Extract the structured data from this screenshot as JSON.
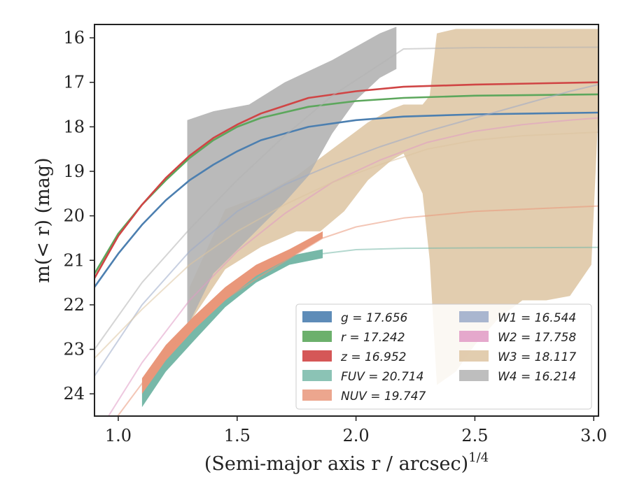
{
  "chart_data": {
    "type": "line",
    "title": "",
    "xlabel": "(Semi-major axis r / arcsec)",
    "xlabel_exponent": "1/4",
    "ylabel": "m(< r) (mag)",
    "xlim": [
      0.9,
      3.02
    ],
    "ylim": [
      24.5,
      15.7
    ],
    "y_inverted": true,
    "x_ticks": [
      1.0,
      1.5,
      2.0,
      2.5,
      3.0
    ],
    "x_tick_labels": [
      "1.0",
      "1.5",
      "2.0",
      "2.5",
      "3.0"
    ],
    "y_ticks": [
      16,
      17,
      18,
      19,
      20,
      21,
      22,
      23,
      24
    ],
    "y_tick_labels": [
      "16",
      "17",
      "18",
      "19",
      "20",
      "21",
      "22",
      "23",
      "24"
    ],
    "grid": false,
    "legend_position": "lower-right",
    "series": [
      {
        "name": "g",
        "legend": "g = 17.656",
        "color": "#4c7fb0",
        "line": [
          [
            0.9,
            21.6
          ],
          [
            1.0,
            20.85
          ],
          [
            1.1,
            20.2
          ],
          [
            1.2,
            19.65
          ],
          [
            1.3,
            19.2
          ],
          [
            1.4,
            18.85
          ],
          [
            1.5,
            18.55
          ],
          [
            1.6,
            18.3
          ],
          [
            1.8,
            18.0
          ],
          [
            2.0,
            17.85
          ],
          [
            2.2,
            17.77
          ],
          [
            2.5,
            17.72
          ],
          [
            3.02,
            17.68
          ]
        ],
        "band": []
      },
      {
        "name": "r",
        "legend": "r = 17.242",
        "color": "#5ca75c",
        "line": [
          [
            0.9,
            21.3
          ],
          [
            1.0,
            20.4
          ],
          [
            1.1,
            19.75
          ],
          [
            1.2,
            19.2
          ],
          [
            1.3,
            18.7
          ],
          [
            1.4,
            18.3
          ],
          [
            1.5,
            18.0
          ],
          [
            1.6,
            17.8
          ],
          [
            1.8,
            17.55
          ],
          [
            2.0,
            17.42
          ],
          [
            2.2,
            17.35
          ],
          [
            2.5,
            17.3
          ],
          [
            3.02,
            17.27
          ]
        ],
        "band": []
      },
      {
        "name": "z",
        "legend": "z = 16.952",
        "color": "#d04545",
        "line": [
          [
            0.9,
            21.4
          ],
          [
            1.0,
            20.45
          ],
          [
            1.1,
            19.75
          ],
          [
            1.2,
            19.15
          ],
          [
            1.3,
            18.65
          ],
          [
            1.4,
            18.25
          ],
          [
            1.5,
            17.95
          ],
          [
            1.6,
            17.7
          ],
          [
            1.8,
            17.35
          ],
          [
            2.0,
            17.2
          ],
          [
            2.2,
            17.1
          ],
          [
            2.5,
            17.05
          ],
          [
            3.02,
            17.0
          ]
        ],
        "band": []
      },
      {
        "name": "FUV",
        "legend": "FUV = 20.714",
        "color": "#77b8a8",
        "line": [
          [
            1.86,
            20.85
          ],
          [
            2.0,
            20.76
          ],
          [
            2.2,
            20.73
          ],
          [
            2.5,
            20.72
          ],
          [
            3.02,
            20.71
          ]
        ],
        "band": [
          [
            1.1,
            24.3,
            23.8
          ],
          [
            1.2,
            23.5,
            23.05
          ],
          [
            1.32,
            22.8,
            22.35
          ],
          [
            1.45,
            22.05,
            21.7
          ],
          [
            1.58,
            21.5,
            21.2
          ],
          [
            1.72,
            21.1,
            20.9
          ],
          [
            1.86,
            20.95,
            20.75
          ]
        ]
      },
      {
        "name": "NUV",
        "legend": "NUV = 19.747",
        "color": "#e9977a",
        "line": [
          [
            0.9,
            25.2
          ],
          [
            1.2,
            23.05
          ],
          [
            1.4,
            22.05
          ],
          [
            1.6,
            21.35
          ],
          [
            1.86,
            20.5
          ],
          [
            2.0,
            20.25
          ],
          [
            2.2,
            20.05
          ],
          [
            2.5,
            19.9
          ],
          [
            3.02,
            19.78
          ]
        ],
        "band": [
          [
            1.1,
            24.0,
            23.65
          ],
          [
            1.2,
            23.25,
            22.9
          ],
          [
            1.32,
            22.55,
            22.25
          ],
          [
            1.45,
            21.9,
            21.6
          ],
          [
            1.58,
            21.35,
            21.1
          ],
          [
            1.72,
            20.95,
            20.75
          ],
          [
            1.86,
            20.5,
            20.35
          ]
        ]
      },
      {
        "name": "W1",
        "legend": "W1 = 16.544",
        "color": "#9aaac8",
        "line": [
          [
            0.9,
            23.6
          ],
          [
            1.1,
            22.0
          ],
          [
            1.3,
            20.8
          ],
          [
            1.5,
            19.9
          ],
          [
            1.7,
            19.3
          ],
          [
            1.9,
            18.85
          ],
          [
            2.1,
            18.45
          ],
          [
            2.3,
            18.1
          ],
          [
            2.5,
            17.8
          ],
          [
            2.7,
            17.5
          ],
          [
            2.9,
            17.2
          ],
          [
            3.02,
            17.05
          ]
        ],
        "band": []
      },
      {
        "name": "W2",
        "legend": "W2 = 17.758",
        "color": "#e09ac4",
        "line": [
          [
            0.9,
            25.0
          ],
          [
            1.1,
            23.3
          ],
          [
            1.3,
            21.9
          ],
          [
            1.5,
            20.8
          ],
          [
            1.7,
            19.95
          ],
          [
            1.9,
            19.25
          ],
          [
            2.1,
            18.75
          ],
          [
            2.3,
            18.35
          ],
          [
            2.5,
            18.1
          ],
          [
            2.7,
            17.95
          ],
          [
            2.9,
            17.85
          ],
          [
            3.02,
            17.8
          ]
        ],
        "band": []
      },
      {
        "name": "W3",
        "legend": "W3 = 18.117",
        "color": "#ddc4a1",
        "line": [
          [
            0.9,
            23.2
          ],
          [
            1.1,
            22.1
          ],
          [
            1.3,
            21.1
          ],
          [
            1.5,
            20.35
          ],
          [
            1.7,
            19.75
          ],
          [
            1.9,
            19.25
          ],
          [
            2.1,
            18.85
          ],
          [
            2.3,
            18.5
          ],
          [
            2.5,
            18.3
          ],
          [
            2.7,
            18.2
          ],
          [
            3.02,
            18.12
          ]
        ],
        "band": [
          [
            1.3,
            22.4,
            21.6
          ],
          [
            1.45,
            21.2,
            19.85
          ],
          [
            1.6,
            20.7,
            19.55
          ],
          [
            1.75,
            20.35,
            19.1
          ],
          [
            1.85,
            20.35,
            18.7
          ],
          [
            1.95,
            19.9,
            18.3
          ],
          [
            2.05,
            19.2,
            17.9
          ],
          [
            2.15,
            18.75,
            17.6
          ],
          [
            2.2,
            18.6,
            17.5
          ],
          [
            2.28,
            19.5,
            17.5
          ],
          [
            2.31,
            21.0,
            17.3
          ],
          [
            2.34,
            23.8,
            15.9
          ],
          [
            2.42,
            23.5,
            15.8
          ],
          [
            2.5,
            22.9,
            15.8
          ],
          [
            2.6,
            22.3,
            15.8
          ],
          [
            2.7,
            21.9,
            15.8
          ],
          [
            2.8,
            21.9,
            15.8
          ],
          [
            2.9,
            21.8,
            15.8
          ],
          [
            2.99,
            21.1,
            15.8
          ],
          [
            3.02,
            17.6,
            15.8
          ]
        ]
      },
      {
        "name": "W4",
        "legend": "W4 = 16.214",
        "color": "#b3b3b3",
        "line": [
          [
            0.9,
            23.0
          ],
          [
            1.1,
            21.5
          ],
          [
            1.3,
            20.3
          ],
          [
            1.5,
            19.2
          ],
          [
            1.7,
            18.2
          ],
          [
            1.9,
            17.3
          ],
          [
            2.1,
            16.6
          ],
          [
            2.2,
            16.25
          ],
          [
            2.5,
            16.22
          ],
          [
            3.02,
            16.21
          ]
        ],
        "band": [
          [
            1.29,
            22.5,
            17.85
          ],
          [
            1.4,
            21.3,
            17.65
          ],
          [
            1.55,
            20.5,
            17.5
          ],
          [
            1.7,
            19.7,
            17.0
          ],
          [
            1.8,
            19.1,
            16.75
          ],
          [
            1.9,
            18.15,
            16.5
          ],
          [
            2.0,
            17.4,
            16.2
          ],
          [
            2.1,
            16.9,
            15.9
          ],
          [
            2.17,
            16.7,
            15.75
          ]
        ]
      }
    ]
  }
}
